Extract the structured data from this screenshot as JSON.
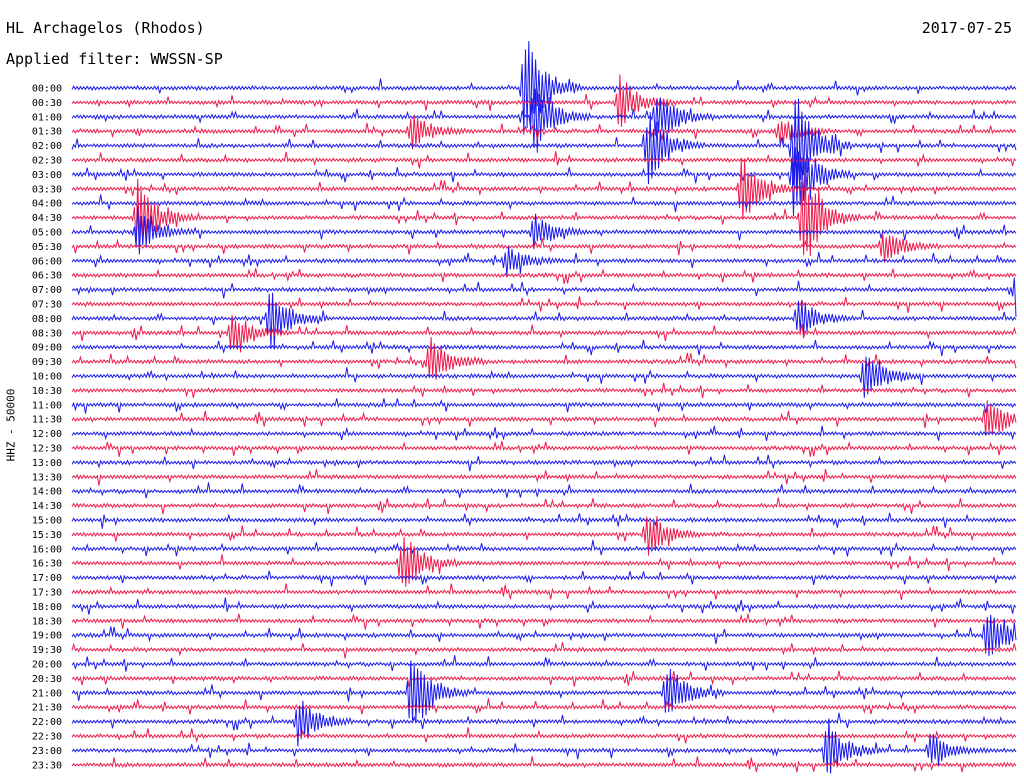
{
  "header": {
    "station": "HL Archagelos (Rhodos)",
    "filter": "Applied filter: WWSSN-SP",
    "date": "2017-07-25"
  },
  "chart_data": {
    "type": "line",
    "title": "HL Archagelos (Rhodos)",
    "subtitle": "Applied filter: WWSSN-SP",
    "date": "2017-07-25",
    "ylabel": "HHZ - 50000",
    "y_ticks": [
      "00:00",
      "00:30",
      "01:00",
      "01:30",
      "02:00",
      "02:30",
      "03:00",
      "03:30",
      "04:00",
      "04:30",
      "05:00",
      "05:30",
      "06:00",
      "06:30",
      "07:00",
      "07:30",
      "08:00",
      "08:30",
      "09:00",
      "09:30",
      "10:00",
      "10:30",
      "11:00",
      "11:30",
      "12:00",
      "12:30",
      "13:00",
      "13:30",
      "14:00",
      "14:30",
      "15:00",
      "15:30",
      "16:00",
      "16:30",
      "17:00",
      "17:30",
      "18:00",
      "18:30",
      "19:00",
      "19:30",
      "20:00",
      "20:30",
      "21:00",
      "21:30",
      "22:00",
      "22:30",
      "23:00",
      "23:30"
    ],
    "trace_colors": [
      "#1a1aee",
      "#ee1a4a"
    ],
    "grid": false,
    "events": [
      {
        "row": 0,
        "t": 0.48,
        "amp": 1.0
      },
      {
        "row": 1,
        "t": 0.58,
        "amp": 0.45
      },
      {
        "row": 2,
        "t": 0.49,
        "amp": 0.7
      },
      {
        "row": 2,
        "t": 0.62,
        "amp": 0.5
      },
      {
        "row": 3,
        "t": 0.36,
        "amp": 0.3
      },
      {
        "row": 3,
        "t": 0.75,
        "amp": 0.25
      },
      {
        "row": 4,
        "t": 0.61,
        "amp": 0.7
      },
      {
        "row": 4,
        "t": 0.765,
        "amp": 1.0
      },
      {
        "row": 6,
        "t": 0.765,
        "amp": 0.8
      },
      {
        "row": 7,
        "t": 0.71,
        "amp": 0.6
      },
      {
        "row": 9,
        "t": 0.07,
        "amp": 0.7
      },
      {
        "row": 9,
        "t": 0.775,
        "amp": 0.9
      },
      {
        "row": 10,
        "t": 0.07,
        "amp": 0.4
      },
      {
        "row": 10,
        "t": 0.49,
        "amp": 0.3
      },
      {
        "row": 11,
        "t": 0.86,
        "amp": 0.3
      },
      {
        "row": 12,
        "t": 0.46,
        "amp": 0.25
      },
      {
        "row": 14,
        "t": 1.0,
        "amp": 0.4
      },
      {
        "row": 16,
        "t": 0.21,
        "amp": 0.55
      },
      {
        "row": 16,
        "t": 0.77,
        "amp": 0.35
      },
      {
        "row": 17,
        "t": 0.17,
        "amp": 0.4
      },
      {
        "row": 19,
        "t": 0.38,
        "amp": 0.45
      },
      {
        "row": 20,
        "t": 0.84,
        "amp": 0.5
      },
      {
        "row": 23,
        "t": 0.97,
        "amp": 0.4
      },
      {
        "row": 31,
        "t": 0.61,
        "amp": 0.4
      },
      {
        "row": 33,
        "t": 0.35,
        "amp": 0.6
      },
      {
        "row": 38,
        "t": 0.97,
        "amp": 0.55
      },
      {
        "row": 42,
        "t": 0.63,
        "amp": 0.55
      },
      {
        "row": 42,
        "t": 0.36,
        "amp": 0.8
      },
      {
        "row": 44,
        "t": 0.24,
        "amp": 0.45
      },
      {
        "row": 46,
        "t": 0.8,
        "amp": 0.5
      },
      {
        "row": 46,
        "t": 0.91,
        "amp": 0.3
      }
    ]
  }
}
